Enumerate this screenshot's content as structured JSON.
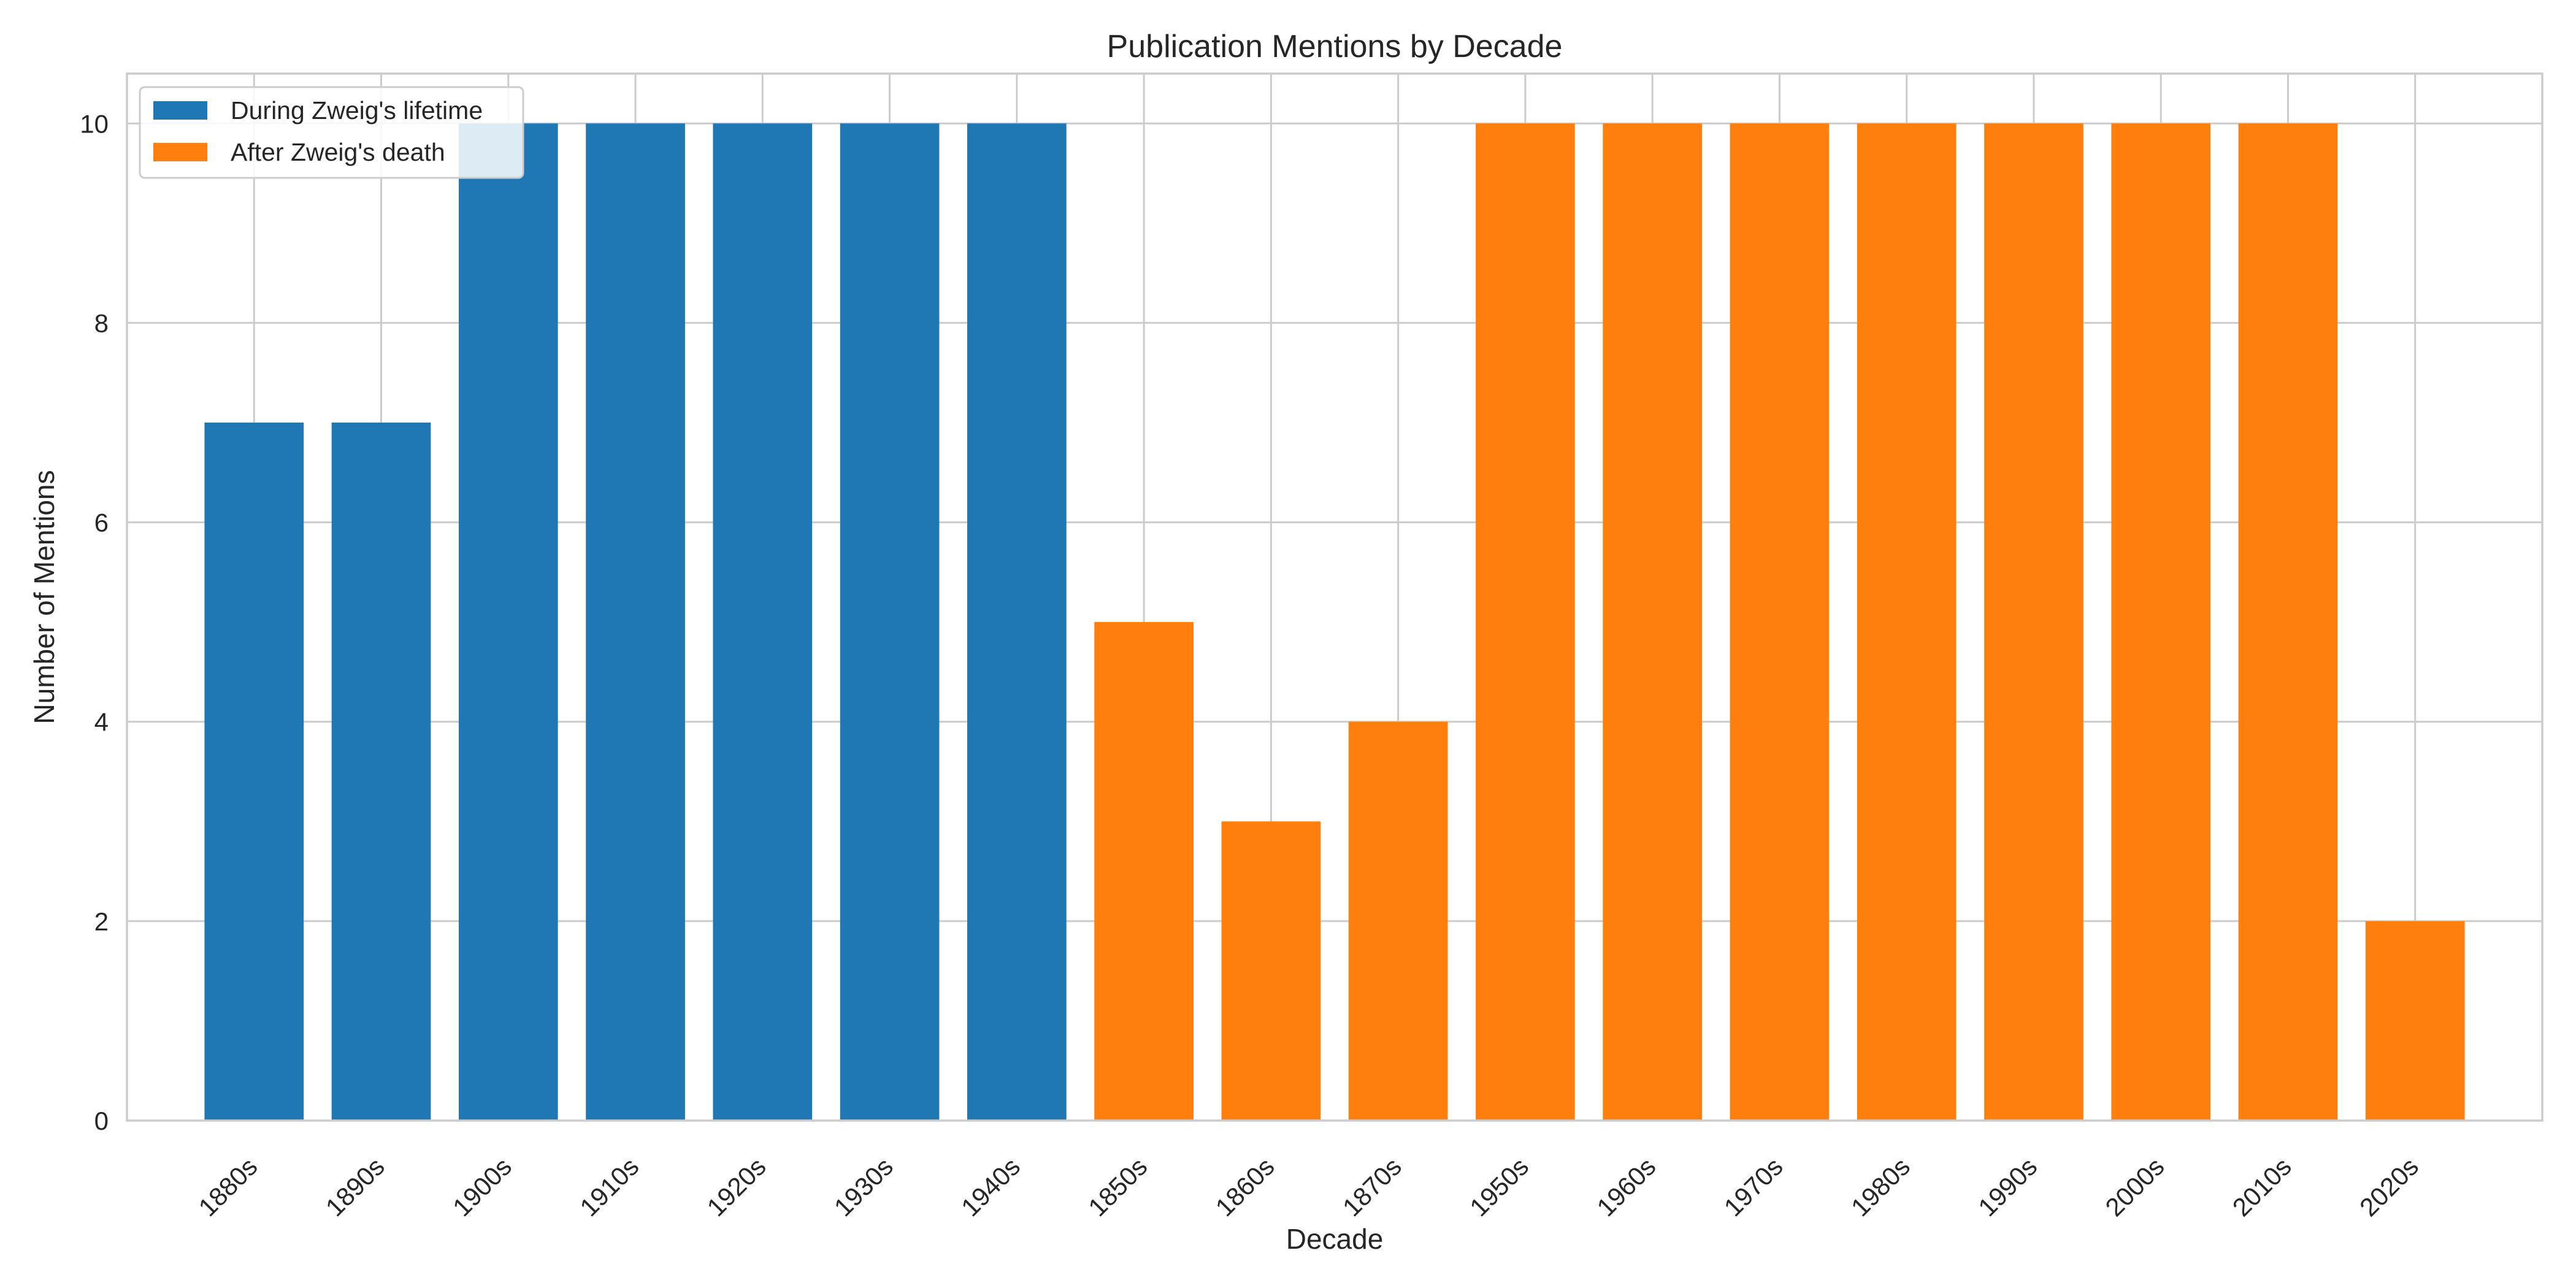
{
  "chart_data": {
    "type": "bar",
    "title": "Publication Mentions by Decade",
    "xlabel": "Decade",
    "ylabel": "Number of Mentions",
    "ylim": [
      0,
      10.5
    ],
    "yticks": [
      0,
      2,
      4,
      6,
      8,
      10
    ],
    "grid": true,
    "legend_position": "upper-left",
    "categories": [
      "1880s",
      "1890s",
      "1900s",
      "1910s",
      "1920s",
      "1930s",
      "1940s",
      "1850s",
      "1860s",
      "1870s",
      "1950s",
      "1960s",
      "1970s",
      "1980s",
      "1990s",
      "2000s",
      "2010s",
      "2020s"
    ],
    "series": [
      {
        "name": "During Zweig's lifetime",
        "color": "#1f77b4",
        "values": [
          7,
          7,
          10,
          10,
          10,
          10,
          10,
          null,
          null,
          null,
          null,
          null,
          null,
          null,
          null,
          null,
          null,
          null
        ]
      },
      {
        "name": "After Zweig's death",
        "color": "#ff7f0e",
        "values": [
          null,
          null,
          null,
          null,
          null,
          null,
          null,
          5,
          3,
          4,
          10,
          10,
          10,
          10,
          10,
          10,
          10,
          2
        ]
      }
    ]
  }
}
